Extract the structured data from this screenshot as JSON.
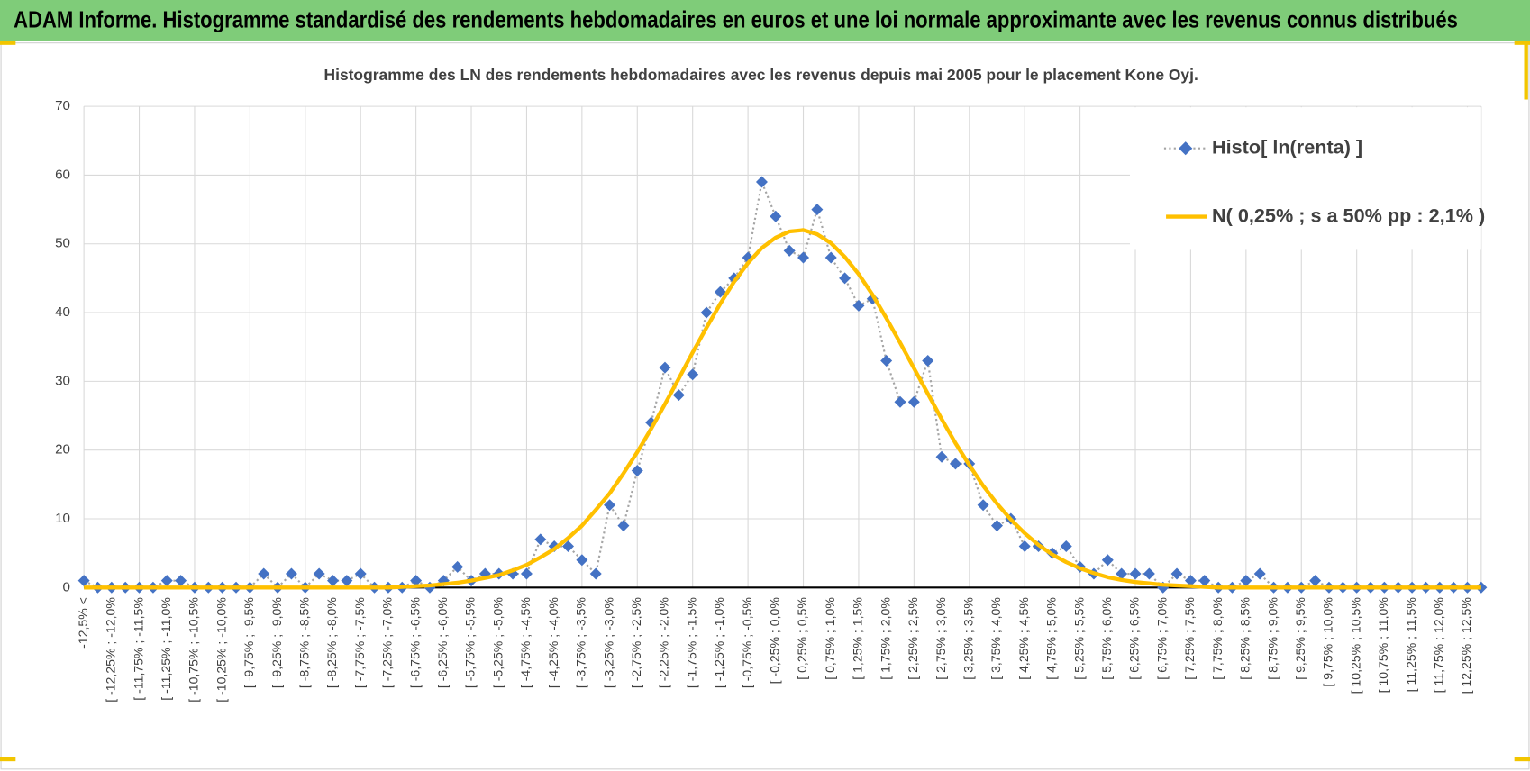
{
  "header": {
    "title": "ADAM Informe. Histogramme standardisé des rendements hebdomadaires en euros et une loi normale approximante avec les revenus connus distribués"
  },
  "chart_data": {
    "type": "line",
    "title": "Histogramme des LN des rendements hebdomadaires avec les revenus depuis mai 2005 pour le placement Kone Oyj.",
    "categories": [
      "-12,5% <",
      null,
      "[ -12,25% ; -12,0%",
      null,
      "[ -11,75% ; -11,5%",
      null,
      "[ -11,25% ; -11,0%",
      null,
      "[ -10,75% ; -10,5%",
      null,
      "[ -10,25% ; -10,0%",
      null,
      "[ -9,75% ; -9,5%",
      null,
      "[ -9,25% ; -9,0%",
      null,
      "[ -8,75% ; -8,5%",
      null,
      "[ -8,25% ; -8,0%",
      null,
      "[ -7,75% ; -7,5%",
      null,
      "[ -7,25% ; -7,0%",
      null,
      "[ -6,75% ; -6,5%",
      null,
      "[ -6,25% ; -6,0%",
      null,
      "[ -5,75% ; -5,5%",
      null,
      "[ -5,25% ; -5,0%",
      null,
      "[ -4,75% ; -4,5%",
      null,
      "[ -4,25% ; -4,0%",
      null,
      "[ -3,75% ; -3,5%",
      null,
      "[ -3,25% ; -3,0%",
      null,
      "[ -2,75% ; -2,5%",
      null,
      "[ -2,25% ; -2,0%",
      null,
      "[ -1,75% ; -1,5%",
      null,
      "[ -1,25% ; -1,0%",
      null,
      "[ -0,75% ; -0,5%",
      null,
      "[ -0,25% ; 0,0%",
      null,
      "[ 0,25% ; 0,5%",
      null,
      "[ 0,75% ; 1,0%",
      null,
      "[ 1,25% ; 1,5%",
      null,
      "[ 1,75% ; 2,0%",
      null,
      "[ 2,25% ; 2,5%",
      null,
      "[ 2,75% ; 3,0%",
      null,
      "[ 3,25% ; 3,5%",
      null,
      "[ 3,75% ; 4,0%",
      null,
      "[ 4,25% ; 4,5%",
      null,
      "[ 4,75% ; 5,0%",
      null,
      "[ 5,25% ; 5,5%",
      null,
      "[ 5,75% ; 6,0%",
      null,
      "[ 6,25% ; 6,5%",
      null,
      "[ 6,75% ; 7,0%",
      null,
      "[ 7,25% ; 7,5%",
      null,
      "[ 7,75% ; 8,0%",
      null,
      "[ 8,25% ; 8,5%",
      null,
      "[ 8,75% ; 9,0%",
      null,
      "[ 9,25% ; 9,5%",
      null,
      "[ 9,75% ; 10,0%",
      null,
      "[ 10,25% ; 10,5%",
      null,
      "[ 10,75% ; 11,0%",
      null,
      "[ 11,25% ; 11,5%",
      null,
      "[ 11,75% ; 12,0%",
      null,
      "[ 12,25% ; 12,5%",
      null
    ],
    "series": [
      {
        "name": "Histo[ ln(renta) ]",
        "color": "#4472c4",
        "line_color": "#a5a5a5",
        "marker": "diamond",
        "values": [
          1,
          0,
          0,
          0,
          0,
          0,
          1,
          1,
          0,
          0,
          0,
          0,
          0,
          2,
          0,
          2,
          0,
          2,
          1,
          1,
          2,
          0,
          0,
          0,
          1,
          0,
          1,
          3,
          1,
          2,
          2,
          2,
          2,
          7,
          6,
          6,
          4,
          2,
          12,
          9,
          17,
          24,
          32,
          28,
          31,
          40,
          43,
          45,
          48,
          59,
          54,
          49,
          48,
          55,
          48,
          45,
          41,
          42,
          33,
          27,
          27,
          33,
          19,
          18,
          18,
          12,
          9,
          10,
          6,
          6,
          5,
          6,
          3,
          2,
          4,
          2,
          2,
          2,
          0,
          2,
          1,
          1,
          0,
          0,
          1,
          2,
          0,
          0,
          0,
          1,
          0,
          0,
          0,
          0,
          0,
          0,
          0,
          0,
          0,
          0,
          0,
          0
        ]
      },
      {
        "name": "N( 0,25% ; s a 50% pp : 2,1% )",
        "color": "#ffc000",
        "values": [
          0,
          0,
          0,
          0,
          0,
          0,
          0,
          0,
          0,
          0,
          0,
          0,
          0,
          0,
          0,
          0,
          0,
          0,
          0,
          0,
          0,
          0,
          0,
          0.1,
          0.2,
          0.3,
          0.5,
          0.7,
          1.0,
          1.4,
          1.8,
          2.5,
          3.3,
          4.4,
          5.6,
          7.2,
          9.0,
          11.3,
          13.7,
          16.6,
          19.7,
          23.1,
          26.7,
          30.4,
          34.2,
          37.8,
          41.3,
          44.5,
          47.2,
          49.4,
          50.9,
          51.8,
          52.0,
          51.4,
          50.1,
          48.1,
          45.6,
          42.6,
          39.2,
          35.6,
          31.9,
          28.2,
          24.5,
          21.0,
          17.8,
          14.8,
          12.2,
          9.9,
          7.9,
          6.2,
          4.8,
          3.7,
          2.8,
          2.1,
          1.5,
          1.1,
          0.8,
          0.6,
          0.4,
          0.3,
          0.2,
          0.1,
          0,
          0,
          0,
          0,
          0,
          0,
          0,
          0,
          0,
          0,
          0,
          0,
          0,
          0,
          0,
          0,
          0,
          0,
          0,
          0
        ]
      }
    ],
    "ylim": [
      0,
      70
    ],
    "yticks": [
      0,
      10,
      20,
      30,
      40,
      50,
      60,
      70
    ],
    "grid": true,
    "legend": "upper right"
  }
}
